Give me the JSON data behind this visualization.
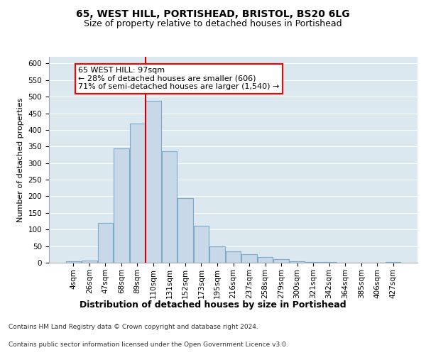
{
  "title_line1": "65, WEST HILL, PORTISHEAD, BRISTOL, BS20 6LG",
  "title_line2": "Size of property relative to detached houses in Portishead",
  "xlabel": "Distribution of detached houses by size in Portishead",
  "ylabel": "Number of detached properties",
  "bar_labels": [
    "4sqm",
    "26sqm",
    "47sqm",
    "68sqm",
    "89sqm",
    "110sqm",
    "131sqm",
    "152sqm",
    "173sqm",
    "195sqm",
    "216sqm",
    "237sqm",
    "258sqm",
    "279sqm",
    "300sqm",
    "321sqm",
    "342sqm",
    "364sqm",
    "385sqm",
    "406sqm",
    "427sqm"
  ],
  "bar_heights": [
    5,
    7,
    120,
    345,
    420,
    487,
    335,
    195,
    112,
    50,
    35,
    25,
    17,
    10,
    5,
    2,
    2,
    1,
    1,
    1,
    2
  ],
  "bar_color": "#c8d8e8",
  "bar_edgecolor": "#7aaac8",
  "bar_linewidth": 0.8,
  "property_line_label": "65 WEST HILL: 97sqm",
  "annotation_line1": "← 28% of detached houses are smaller (606)",
  "annotation_line2": "71% of semi-detached houses are larger (1,540) →",
  "annotation_box_color": "white",
  "annotation_box_edgecolor": "red",
  "red_line_color": "#cc0000",
  "red_line_x": 4.5,
  "ylim": [
    0,
    620
  ],
  "yticks": [
    0,
    50,
    100,
    150,
    200,
    250,
    300,
    350,
    400,
    450,
    500,
    550,
    600
  ],
  "plot_background": "#dce8f0",
  "grid_color": "white",
  "footnote_line1": "Contains HM Land Registry data © Crown copyright and database right 2024.",
  "footnote_line2": "Contains public sector information licensed under the Open Government Licence v3.0.",
  "title1_fontsize": 10,
  "title2_fontsize": 9,
  "xlabel_fontsize": 9,
  "ylabel_fontsize": 8,
  "tick_fontsize": 7.5,
  "annotation_fontsize": 8,
  "footnote_fontsize": 6.5
}
